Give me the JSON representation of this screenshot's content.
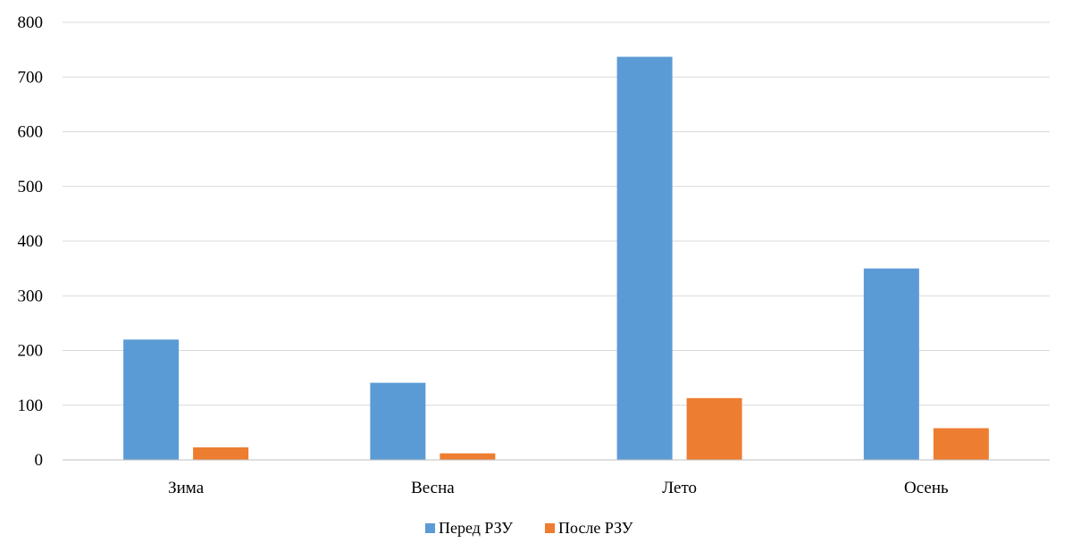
{
  "chart_data": {
    "type": "bar",
    "title": "",
    "xlabel": "",
    "ylabel": "",
    "categories": [
      "Зима",
      "Весна",
      "Лето",
      "Осень"
    ],
    "series": [
      {
        "name": "Перед РЗУ",
        "color": "#5b9bd5",
        "values": [
          220,
          141,
          737,
          350
        ]
      },
      {
        "name": "После РЗУ",
        "color": "#ed7d31",
        "values": [
          23,
          12,
          113,
          58
        ]
      }
    ],
    "ylim": [
      0,
      800
    ],
    "yticks": [
      0,
      100,
      200,
      300,
      400,
      500,
      600,
      700,
      800
    ],
    "grid": true,
    "legend_position": "bottom"
  }
}
